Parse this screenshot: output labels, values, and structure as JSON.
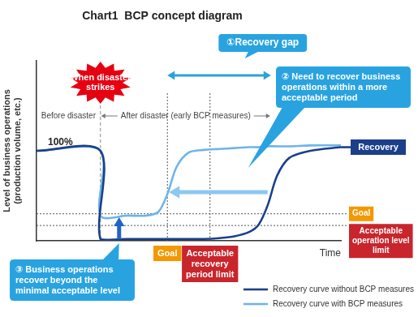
{
  "chart_data": {
    "type": "line",
    "title": "Chart1  BCP concept diagram",
    "y_label": [
      "Level of business operations",
      "(production volume, etc.)"
    ],
    "x_label": "Time",
    "x": [
      0,
      21,
      21,
      30,
      36,
      40,
      43,
      46,
      50,
      55,
      60,
      65,
      70,
      73,
      76,
      79,
      83,
      90,
      100
    ],
    "series": [
      {
        "name": "Recovery curve without BCP measures",
        "color": "#1b3f8b",
        "end_label": "Recovery",
        "values": [
          100,
          100,
          2,
          2,
          2,
          2,
          2,
          2,
          2,
          2,
          3,
          5,
          10,
          18,
          40,
          72,
          92,
          100,
          104
        ]
      },
      {
        "name": "Recovery curve with BCP measures",
        "color": "#6eb4ea",
        "values": [
          100,
          100,
          28,
          28,
          28,
          32,
          52,
          82,
          98,
          101,
          102,
          103,
          104,
          104,
          105,
          105,
          105,
          106,
          106
        ]
      }
    ],
    "xlim": [
      0,
      100
    ],
    "ylim": [
      0,
      200
    ],
    "yticks": [
      {
        "value": 100,
        "label": "100%"
      }
    ],
    "tick_labels": "y",
    "grid": false,
    "legend": "bottom right",
    "annotations": [
      {
        "type": "phase",
        "text": "Before disaster",
        "from": 0,
        "to": 21
      },
      {
        "type": "phase",
        "text": "After disaster (early BCP measures)",
        "from": 21,
        "to": 77
      },
      {
        "type": "event",
        "text": "When disaster strikes",
        "x": 21,
        "color": "#e60012"
      },
      {
        "type": "gap",
        "text": "①Recovery gap",
        "from": 43,
        "to": 77,
        "color": "#29a3e0"
      },
      {
        "type": "callout",
        "text": "② Need to recover business operations within a more acceptable period",
        "color": "#29a3e0"
      },
      {
        "type": "callout",
        "text": "③ Business operations recover beyond the minimal acceptable level",
        "color": "#29a3e0"
      },
      {
        "type": "vline",
        "x": 43,
        "text": "Goal",
        "color": "#f39800"
      },
      {
        "type": "vline",
        "x": 57,
        "text": "Acceptable recovery period limit",
        "color": "#c9252c"
      },
      {
        "type": "hline",
        "y": 30,
        "text": "Goal",
        "color": "#f39800"
      },
      {
        "type": "hline",
        "y": 17,
        "text": "Acceptable operation level limit",
        "color": "#c9252c"
      }
    ]
  }
}
